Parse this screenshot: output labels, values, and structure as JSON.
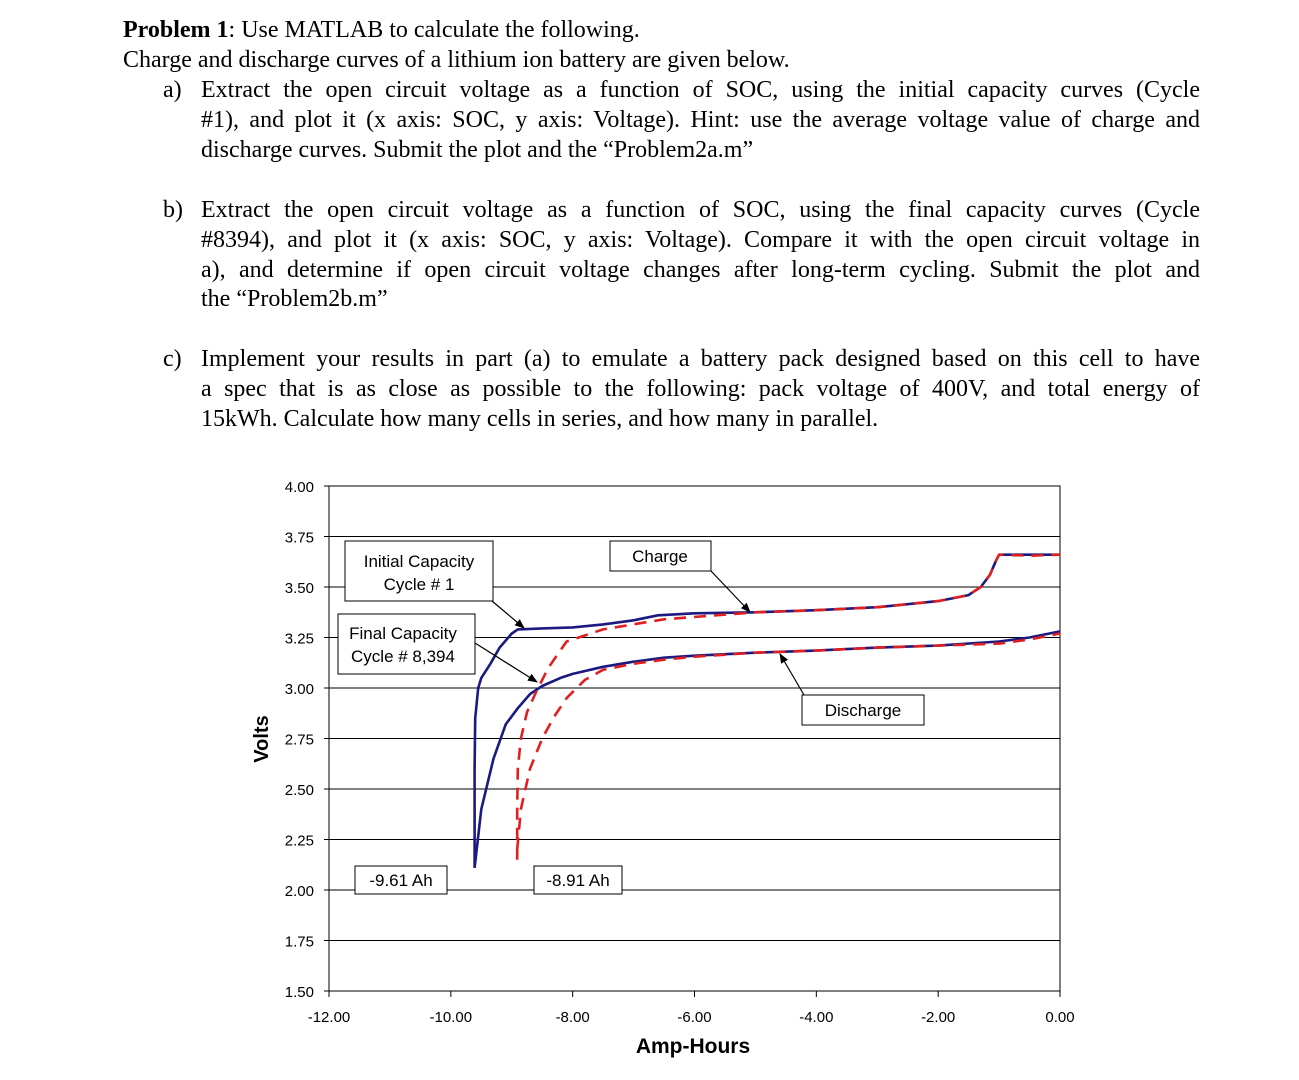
{
  "problem": {
    "heading_bold": "Problem 1",
    "heading_rest": ": Use MATLAB to calculate the following.",
    "intro": "Charge and discharge curves of a lithium ion battery are given below.",
    "parts": [
      {
        "marker": "a)",
        "lines": [
          "Extract the open circuit voltage as a function of SOC, using the initial capacity curves (Cycle",
          "#1), and plot it (x axis: SOC, y axis: Voltage). Hint: use the average voltage value of charge and",
          "discharge curves. Submit the plot and the “Problem2a.m”"
        ]
      },
      {
        "marker": "b)",
        "lines": [
          "Extract the open circuit voltage as a function of SOC, using the final capacity curves (Cycle",
          "#8394), and plot it (x axis: SOC, y axis: Voltage).   Compare it with the open circuit voltage in",
          "a), and determine if open circuit voltage changes after long-term cycling. Submit the plot and",
          "the “Problem2b.m”"
        ]
      },
      {
        "marker": "c)",
        "lines": [
          "Implement your results in part (a) to emulate a battery pack designed based on this cell to have",
          "a spec that is as close as possible to the following: pack voltage of 400V, and total energy of",
          "15kWh. Calculate how many cells in series, and how many in parallel."
        ]
      }
    ]
  },
  "chart_data": {
    "type": "line",
    "xlabel": "Amp-Hours",
    "ylabel": "Volts",
    "xlim": [
      -12,
      0
    ],
    "ylim": [
      1.5,
      4.0
    ],
    "x_ticks": [
      "-12.00",
      "-10.00",
      "-8.00",
      "-6.00",
      "-4.00",
      "-2.00",
      "0.00"
    ],
    "y_ticks": [
      "4.00",
      "3.75",
      "3.50",
      "3.25",
      "3.00",
      "2.75",
      "2.50",
      "2.25",
      "2.00",
      "1.75",
      "1.50"
    ],
    "grid": "horizontal",
    "colors": {
      "initial": "#1a1a80",
      "final": "#e02020"
    },
    "series": [
      {
        "style": "solid",
        "color": "#1a1a80",
        "x": [
          -9.61,
          -9.61,
          -9.6,
          -9.55,
          -9.5,
          -9.35,
          -9.2,
          -9.0,
          -8.9,
          -8.5,
          -8.0,
          -7.5,
          -7.0,
          -6.6,
          -6.0,
          -5.0,
          -4.0,
          -3.0,
          -2.0,
          -1.5,
          -1.3,
          -1.15,
          -1.05,
          -1.0,
          -0.5,
          0.0
        ],
        "y": [
          2.11,
          2.6,
          2.85,
          3.0,
          3.05,
          3.12,
          3.2,
          3.27,
          3.29,
          3.295,
          3.3,
          3.315,
          3.335,
          3.36,
          3.37,
          3.375,
          3.385,
          3.4,
          3.43,
          3.46,
          3.5,
          3.56,
          3.63,
          3.66,
          3.66,
          3.66
        ]
      },
      {
        "style": "solid",
        "color": "#1a1a80",
        "x": [
          -9.61,
          -9.5,
          -9.3,
          -9.1,
          -8.9,
          -8.7,
          -8.5,
          -8.2,
          -8.0,
          -7.5,
          -7.0,
          -6.5,
          -6.0,
          -5.0,
          -4.0,
          -3.0,
          -2.0,
          -1.0,
          -0.5,
          0.0
        ],
        "y": [
          2.11,
          2.4,
          2.65,
          2.82,
          2.9,
          2.97,
          3.01,
          3.05,
          3.07,
          3.105,
          3.13,
          3.15,
          3.16,
          3.175,
          3.185,
          3.2,
          3.21,
          3.23,
          3.25,
          3.28
        ]
      },
      {
        "style": "dashed",
        "color": "#e02020",
        "x": [
          -8.91,
          -8.91,
          -8.9,
          -8.85,
          -8.75,
          -8.6,
          -8.4,
          -8.1,
          -7.5,
          -6.5,
          -5.0,
          -4.0,
          -3.0,
          -2.0,
          -1.5,
          -1.3,
          -1.15,
          -1.05,
          -1.0,
          -0.5,
          0.0
        ],
        "y": [
          2.15,
          2.4,
          2.6,
          2.75,
          2.88,
          2.98,
          3.1,
          3.23,
          3.29,
          3.34,
          3.375,
          3.385,
          3.4,
          3.43,
          3.46,
          3.5,
          3.56,
          3.63,
          3.66,
          3.655,
          3.66
        ]
      },
      {
        "style": "dashed",
        "color": "#e02020",
        "x": [
          -8.91,
          -8.85,
          -8.7,
          -8.5,
          -8.3,
          -8.1,
          -7.8,
          -7.5,
          -7.0,
          -6.5,
          -6.0,
          -5.0,
          -4.0,
          -3.0,
          -2.0,
          -1.0,
          -0.5,
          0.0
        ],
        "y": [
          2.2,
          2.4,
          2.6,
          2.75,
          2.86,
          2.95,
          3.04,
          3.09,
          3.12,
          3.14,
          3.155,
          3.175,
          3.185,
          3.2,
          3.21,
          3.22,
          3.24,
          3.27
        ]
      }
    ],
    "annotations": [
      {
        "lines": [
          "Initial Capacity",
          "Cycle # 1"
        ]
      },
      {
        "lines": [
          "Final Capacity",
          "Cycle # 8,394"
        ]
      },
      {
        "lines": [
          "Charge"
        ]
      },
      {
        "lines": [
          "Discharge"
        ]
      },
      {
        "lines": [
          "-9.61 Ah"
        ]
      },
      {
        "lines": [
          "-8.91 Ah"
        ]
      }
    ]
  }
}
